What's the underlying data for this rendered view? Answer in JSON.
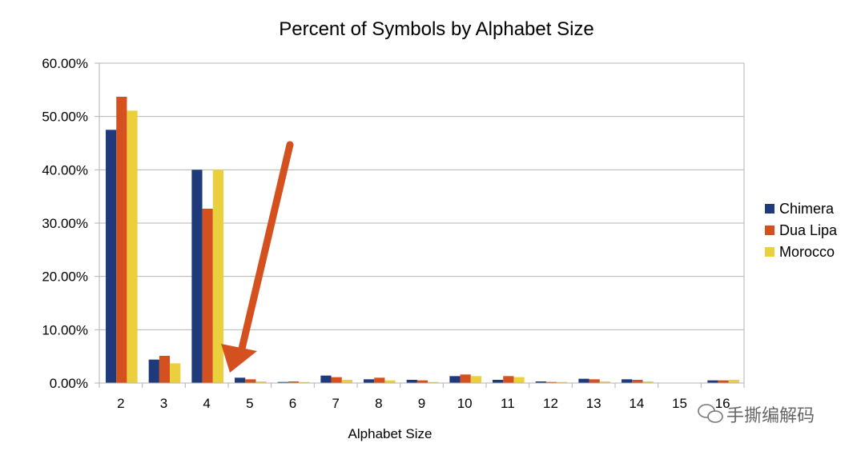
{
  "chart_data": {
    "type": "bar",
    "title": "Percent of Symbols by Alphabet Size",
    "xlabel": "Alphabet Size",
    "ylabel": "",
    "ylim": [
      0,
      60
    ],
    "yticks": [
      "0.00%",
      "10.00%",
      "20.00%",
      "30.00%",
      "40.00%",
      "50.00%",
      "60.00%"
    ],
    "grid": true,
    "legend_position": "right",
    "categories": [
      "2",
      "3",
      "4",
      "5",
      "6",
      "7",
      "8",
      "9",
      "10",
      "11",
      "12",
      "13",
      "14",
      "15",
      "16"
    ],
    "series": [
      {
        "name": "Chimera",
        "color": "#1f3a7a",
        "values": [
          47.5,
          4.4,
          40.0,
          1.0,
          0.2,
          1.4,
          0.7,
          0.6,
          1.3,
          0.6,
          0.3,
          0.8,
          0.7,
          0.0,
          0.5
        ]
      },
      {
        "name": "Dua Lipa",
        "color": "#d4501e",
        "values": [
          53.7,
          5.1,
          32.7,
          0.7,
          0.3,
          1.1,
          1.0,
          0.5,
          1.6,
          1.3,
          0.2,
          0.7,
          0.6,
          0.0,
          0.5
        ]
      },
      {
        "name": "Morocco",
        "color": "#eccf3c",
        "values": [
          51.1,
          3.7,
          40.0,
          0.3,
          0.2,
          0.6,
          0.5,
          0.2,
          1.3,
          1.1,
          0.2,
          0.3,
          0.3,
          0.0,
          0.6
        ]
      }
    ],
    "annotation": {
      "shape": "arrow",
      "color": "#d4501e",
      "points_to_category": "5"
    }
  },
  "watermark": {
    "text": "手撕编解码",
    "icon": "wechat-icon"
  }
}
